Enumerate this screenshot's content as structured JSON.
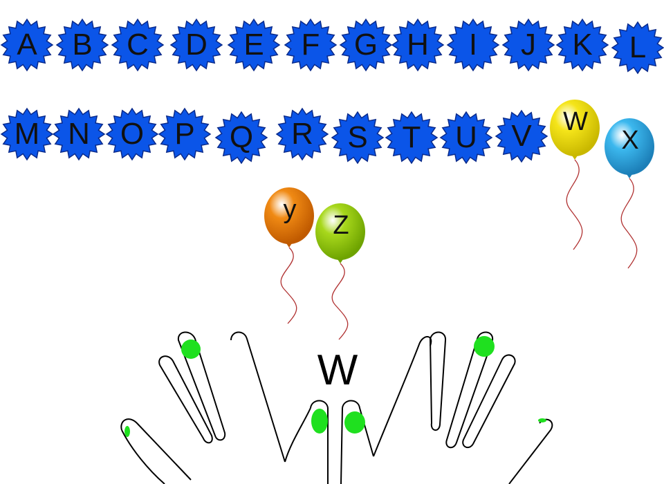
{
  "letters": [
    "A",
    "B",
    "C",
    "D",
    "E",
    "F",
    "G",
    "H",
    "I",
    "J",
    "K",
    "L",
    "M",
    "N",
    "O",
    "P",
    "Q",
    "R",
    "S",
    "T",
    "U",
    "V"
  ],
  "balloons": [
    {
      "letter": "W",
      "color": "#f5e51a",
      "shade": "#c9b800"
    },
    {
      "letter": "X",
      "color": "#3cb8ee",
      "shade": "#1c7fb8"
    },
    {
      "letter": "y",
      "color": "#f08a14",
      "shade": "#c05a00"
    },
    {
      "letter": "Z",
      "color": "#a8d81c",
      "shade": "#6ea300"
    }
  ],
  "target_letter": "W",
  "colors": {
    "star_fill": "#0b55e8",
    "star_stroke": "#0a2a8a",
    "finger_marker": "#1fe01f",
    "string": "#b03030"
  }
}
